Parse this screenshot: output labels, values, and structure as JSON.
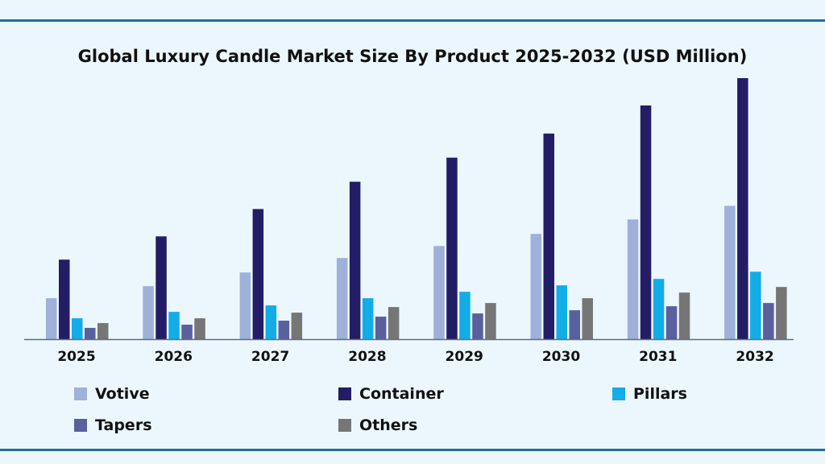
{
  "chart_data": {
    "type": "bar",
    "title": "Global Luxury Candle Market Size By Product 2025-2032 (USD Million)",
    "xlabel": "",
    "ylabel": "",
    "categories": [
      "2025",
      "2026",
      "2027",
      "2028",
      "2029",
      "2030",
      "2031",
      "2032"
    ],
    "series": [
      {
        "name": "Votive",
        "color": "#9fb0d9",
        "values": [
          51,
          66,
          83,
          101,
          116,
          131,
          149,
          166
        ]
      },
      {
        "name": "Container",
        "color": "#231d65",
        "values": [
          99,
          128,
          162,
          196,
          226,
          256,
          291,
          325
        ]
      },
      {
        "name": "Pillars",
        "color": "#12ade6",
        "values": [
          26,
          34,
          42,
          51,
          59,
          67,
          75,
          84
        ]
      },
      {
        "name": "Tapers",
        "color": "#5a5f9e",
        "values": [
          14,
          18,
          23,
          28,
          32,
          36,
          41,
          45
        ]
      },
      {
        "name": "Others",
        "color": "#767676",
        "values": [
          20,
          26,
          33,
          40,
          45,
          51,
          58,
          65
        ]
      }
    ],
    "ylim": [
      0,
      325
    ],
    "y_axis_shown": false,
    "grid": false,
    "legend_position": "bottom"
  }
}
